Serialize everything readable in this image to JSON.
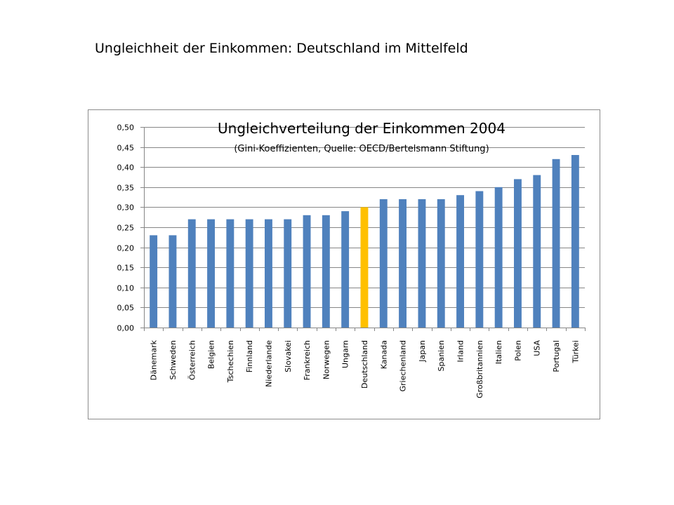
{
  "slide": {
    "title": "Ungleichheit der Einkommen: Deutschland im Mittelfeld"
  },
  "colors": {
    "bar": "#4f81bd",
    "highlight": "#ffc000",
    "grid": "#868686",
    "axis": "#868686",
    "text": "#000000",
    "frame": "#8c8c8c"
  },
  "chart_data": {
    "type": "bar",
    "title": "Ungleichverteilung der Einkommen 2004",
    "subtitle": "(Gini-Koeffizienten, Quelle: OECD/Bertelsmann Stiftung)",
    "categories": [
      "Dänemark",
      "Schweden",
      "Österreich",
      "Belgien",
      "Tschechien",
      "Finnland",
      "Niederlande",
      "Slovakei",
      "Frankreich",
      "Norwegen",
      "Ungarn",
      "Deutschland",
      "Kanada",
      "Griechenland",
      "Japan",
      "Spanien",
      "Irland",
      "Großbritannien",
      "Italien",
      "Polen",
      "USA",
      "Portugal",
      "Türkei"
    ],
    "values": [
      0.23,
      0.23,
      0.27,
      0.27,
      0.27,
      0.27,
      0.27,
      0.27,
      0.28,
      0.28,
      0.29,
      0.3,
      0.32,
      0.32,
      0.32,
      0.32,
      0.33,
      0.34,
      0.35,
      0.37,
      0.38,
      0.42,
      0.43
    ],
    "highlight_category": "Deutschland",
    "yticks": [
      "0,00",
      "0,05",
      "0,10",
      "0,15",
      "0,20",
      "0,25",
      "0,30",
      "0,35",
      "0,40",
      "0,45",
      "0,50"
    ],
    "ylim": [
      0,
      0.5
    ],
    "ystep": 0.05,
    "grid": true,
    "legend": "none",
    "xlabel": "",
    "ylabel": ""
  }
}
